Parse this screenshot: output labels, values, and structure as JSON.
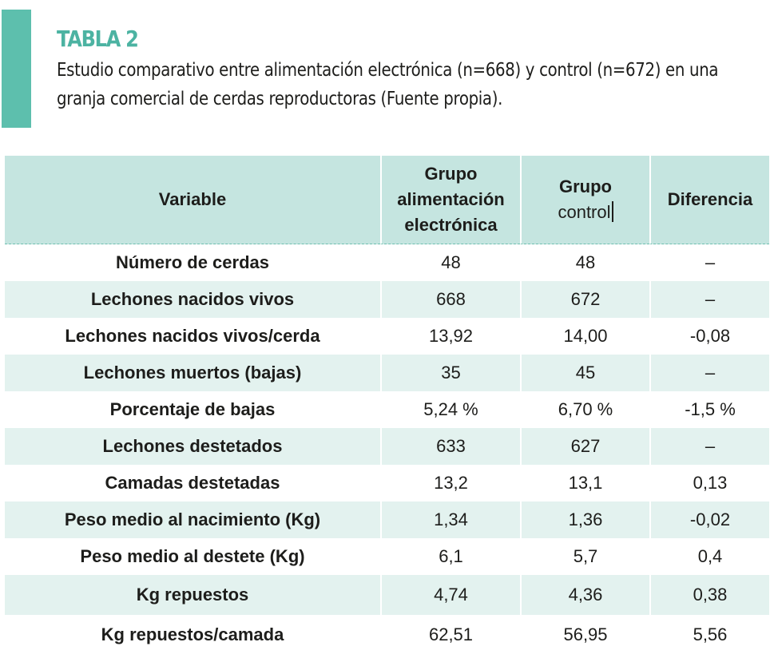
{
  "colors": {
    "accent": "#5dbfad",
    "title": "#4cb3a2",
    "header_bg": "#c5e5e0",
    "row_alt_bg": "#e3f2ef"
  },
  "title": "TABLA 2",
  "caption": {
    "line1": "Estudio comparativo entre alimentación electrónica (n=668) y control (n=672) en una",
    "line2": "granja comercial de cerdas reproductoras (Fuente propia)."
  },
  "table": {
    "headers": {
      "variable": "Variable",
      "group1": {
        "line1": "Grupo",
        "line2": "alimentación",
        "line3": "electrónica"
      },
      "group2": {
        "line1": "Grupo",
        "line2": "control"
      },
      "difference": "Diferencia"
    },
    "rows": [
      [
        "Número de cerdas",
        "48",
        "48",
        "–"
      ],
      [
        "Lechones nacidos vivos",
        "668",
        "672",
        "–"
      ],
      [
        "Lechones nacidos vivos/cerda",
        "13,92",
        "14,00",
        "-0,08"
      ],
      [
        "Lechones muertos (bajas)",
        "35",
        "45",
        "–"
      ],
      [
        "Porcentaje de bajas",
        "5,24 %",
        "6,70 %",
        "-1,5 %"
      ],
      [
        "Lechones destetados",
        "633",
        "627",
        "–"
      ],
      [
        "Camadas destetadas",
        "13,2",
        "13,1",
        "0,13"
      ],
      [
        "Peso medio al nacimiento (Kg)",
        "1,34",
        "1,36",
        "-0,02"
      ],
      [
        "Peso medio al destete (Kg)",
        "6,1",
        "5,7",
        "0,4"
      ],
      [
        "Kg repuestos",
        "4,74",
        "4,36",
        "0,38"
      ],
      [
        "Kg repuestos/camada",
        "62,51",
        "56,95",
        "5,56"
      ]
    ]
  }
}
